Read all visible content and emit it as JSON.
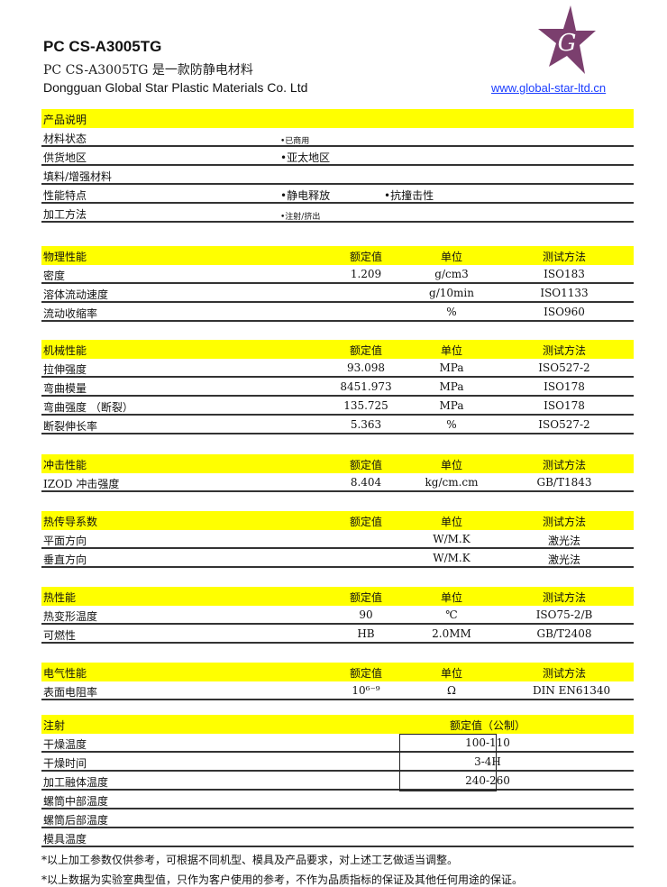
{
  "header": {
    "title": "PC CS-A3005TG",
    "subtitle": "PC CS-A3005TG 是一款防静电材料",
    "company": "Dongguan Global Star Plastic Materials Co. Ltd",
    "url": "www.global-star-ltd.cn",
    "logo_text": "G",
    "logo_color": "#7b3f6e"
  },
  "product": {
    "title": "产品说明",
    "rows": [
      {
        "label": "材料状态",
        "v1": "•已商用",
        "v2": ""
      },
      {
        "label": "供货地区",
        "v1": "•亚太地区",
        "v2": ""
      },
      {
        "label": "填料/增强材料",
        "v1": "",
        "v2": ""
      },
      {
        "label": "性能特点",
        "v1": "•静电释放",
        "v2": "•抗撞击性"
      },
      {
        "label": "加工方法",
        "v1": "•注射/挤出",
        "v2": ""
      }
    ]
  },
  "sections": [
    {
      "title": "物理性能",
      "h1": "额定值",
      "h2": "单位",
      "h3": "测试方法",
      "rows": [
        {
          "label": "密度",
          "value": "1.209",
          "unit": "g/cm3",
          "method": "ISO183"
        },
        {
          "label": "溶体流动速度",
          "value": "",
          "unit": "g/10min",
          "method": "ISO1133"
        },
        {
          "label": "流动收缩率",
          "value": "",
          "unit": "%",
          "method": "ISO960"
        }
      ]
    },
    {
      "title": "机械性能",
      "h1": "额定值",
      "h2": "单位",
      "h3": "测试方法",
      "rows": [
        {
          "label": "拉伸强度",
          "value": "93.098",
          "unit": "MPa",
          "method": "ISO527-2"
        },
        {
          "label": "弯曲模量",
          "value": "8451.973",
          "unit": "MPa",
          "method": "ISO178"
        },
        {
          "label": "弯曲强度 （断裂）",
          "value": "135.725",
          "unit": "MPa",
          "method": "ISO178"
        },
        {
          "label": "断裂伸长率",
          "value": "5.363",
          "unit": "%",
          "method": "ISO527-2"
        }
      ]
    },
    {
      "title": "冲击性能",
      "h1": "额定值",
      "h2": "单位",
      "h3": "测试方法",
      "rows": [
        {
          "label": "IZOD 冲击强度",
          "value": "8.404",
          "unit": "kg/cm.cm",
          "method": "GB/T1843"
        }
      ]
    },
    {
      "title": "热传导系数",
      "h1": "额定值",
      "h2": "单位",
      "h3": "测试方法",
      "rows": [
        {
          "label": "平面方向",
          "value": "",
          "unit": "W/M.K",
          "method": "激光法"
        },
        {
          "label": "垂直方向",
          "value": "",
          "unit": "W/M.K",
          "method": "激光法"
        }
      ]
    },
    {
      "title": "热性能",
      "h1": "额定值",
      "h2": "单位",
      "h3": "测试方法",
      "rows": [
        {
          "label": "热变形温度",
          "value": "90",
          "unit": "℃",
          "method": "ISO75-2/B"
        },
        {
          "label": "可燃性",
          "value": "HB",
          "unit": "2.0MM",
          "method": "GB/T2408"
        }
      ]
    },
    {
      "title": "电气性能",
      "h1": "额定值",
      "h2": "单位",
      "h3": "测试方法",
      "rows": [
        {
          "label": "表面电阻率",
          "value": "10⁶⁻⁹",
          "unit": "Ω",
          "method": "DIN EN61340"
        }
      ]
    }
  ],
  "injection": {
    "title": "注射",
    "h1": "额定值（公制）",
    "rows": [
      {
        "label": "干燥温度",
        "value": "100-110"
      },
      {
        "label": "干燥时间",
        "value": "3-4H"
      },
      {
        "label": "加工融体温度",
        "value": "240-260"
      },
      {
        "label": "螺筒中部温度",
        "value": ""
      },
      {
        "label": "螺筒后部温度",
        "value": ""
      },
      {
        "label": "模具温度",
        "value": ""
      }
    ]
  },
  "notes": [
    "*以上加工参数仅供参考，可根据不同机型、模具及产品要求，对上述工艺做适当调整。",
    "*以上数据为实验室典型值，只作为客户使用的参考，不作为品质指标的保证及其他任何用途的保证。"
  ]
}
